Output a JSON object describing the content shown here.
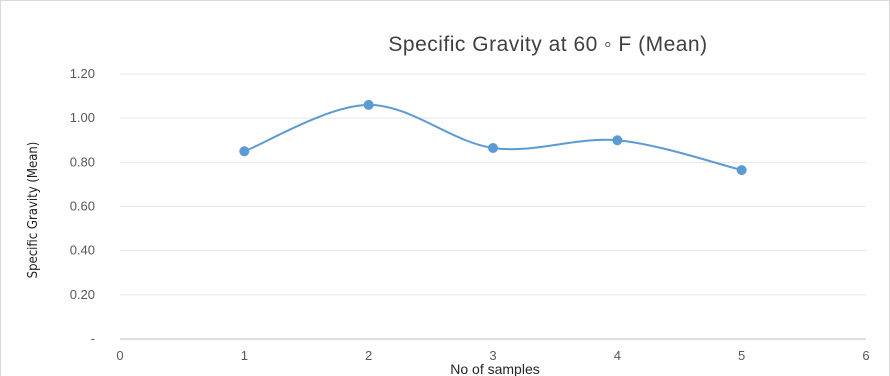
{
  "chart_data": {
    "type": "line",
    "title": "Specific  Gravity at 60 ◦ F (Mean)",
    "xlabel": "No of samples",
    "ylabel": "Specific  Gravity (Mean)",
    "x": [
      1,
      2,
      3,
      4,
      5
    ],
    "series": [
      {
        "values": [
          0.85,
          1.06,
          0.865,
          0.9,
          0.765
        ]
      }
    ],
    "xlim": [
      0,
      6
    ],
    "ylim": [
      0,
      1.2
    ],
    "xticks": [
      0,
      1,
      2,
      3,
      4,
      5,
      6
    ],
    "yticks": [
      0,
      0.2,
      0.4,
      0.6,
      0.8,
      1.0,
      1.2
    ],
    "ytick_labels": [
      "-",
      "0.20",
      "0.40",
      "0.60",
      "0.80",
      "1.00",
      "1.20"
    ],
    "grid": true,
    "smooth": true,
    "color": "#5b9bd5"
  }
}
